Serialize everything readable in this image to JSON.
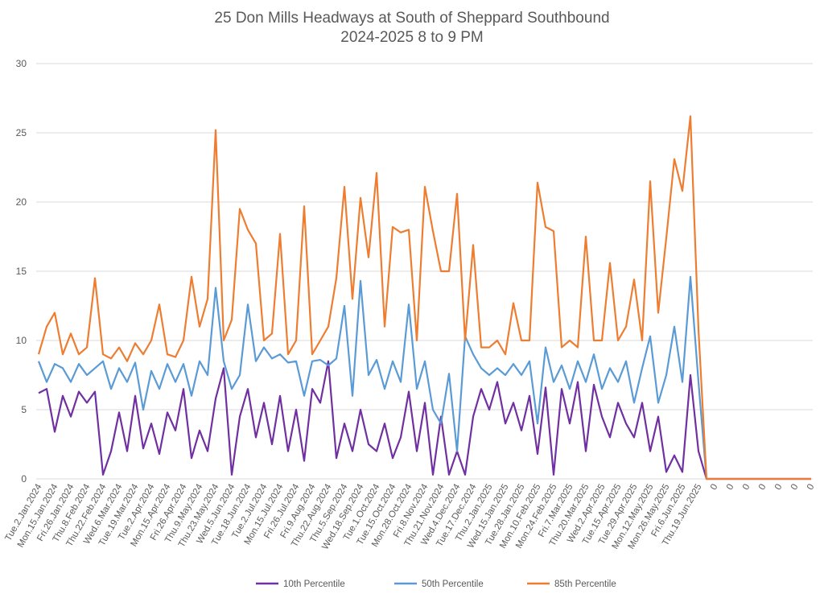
{
  "chart_data": {
    "type": "line",
    "title": "25 Don Mills Headways at South of Sheppard Southbound",
    "subtitle": "2024-2025 8 to 9 PM",
    "xlabel": "",
    "ylabel": "",
    "ylim": [
      0,
      30
    ],
    "yticks": [
      0,
      5,
      10,
      15,
      20,
      25,
      30
    ],
    "grid": true,
    "legend_position": "bottom",
    "x_tick_labels": [
      "Tue.2.Jan.2024",
      "Mon.15.Jan.2024",
      "Fri.26.Jan.2024",
      "Thu.8.Feb.2024",
      "Thu.22.Feb.2024",
      "Wed.6.Mar.2024",
      "Tue.19.Mar.2024",
      "Tue.2.Apr.2024",
      "Mon.15.Apr.2024",
      "Fri.26.Apr.2024",
      "Thu.9.May.2024",
      "Thu.23.May.2024",
      "Wed.5.Jun.2024",
      "Tue.18.Jun.2024",
      "Tue.2.Jul.2024",
      "Mon.15.Jul.2024",
      "Fri.26.Jul.2024",
      "Fri.9.Aug.2024",
      "Thu.22.Aug.2024",
      "Thu.5.Sep.2024",
      "Wed.18.Sep.2024",
      "Tue.1.Oct.2024",
      "Tue.15.Oct.2024",
      "Mon.28.Oct.2024",
      "Fri.8.Nov.2024",
      "Thu.21.Nov.2024",
      "Wed.4.Dec.2024",
      "Tue.17.Dec.2024",
      "Thu.2.Jan.2025",
      "Wed.15.Jan.2025",
      "Tue.28.Jan.2025",
      "Mon.10.Feb.2025",
      "Mon.24.Feb.2025",
      "Fri.7.Mar.2025",
      "Thu.20.Mar.2025",
      "Wed.2.Apr.2025",
      "Tue.15.Apr.2025",
      "Tue.29.Apr.2025",
      "Mon.12.May.2025",
      "Mon.26.May.2025",
      "Fri.6.Jun.2025",
      "Thu.19.Jun.2025",
      "0",
      "0",
      "0",
      "0",
      "0",
      "0",
      "0"
    ],
    "series": [
      {
        "name": "10th Percentile",
        "color": "#7030a0",
        "values": [
          6.2,
          6.5,
          3.4,
          6,
          4.5,
          6.3,
          5.5,
          6.3,
          0.3,
          2,
          4.8,
          2,
          6,
          2.2,
          4,
          1.8,
          4.8,
          3.5,
          6.5,
          1.5,
          3.5,
          2,
          5.8,
          8,
          0.3,
          4.5,
          6.5,
          3,
          5.5,
          2.5,
          6,
          2,
          5,
          1.3,
          6.5,
          5.5,
          8.5,
          1.5,
          4,
          2,
          5,
          2.5,
          2,
          4,
          1.5,
          3,
          6.3,
          2,
          5.5,
          0.3,
          4.5,
          0.3,
          2,
          0.3,
          4.5,
          6.5,
          5,
          7,
          4,
          5.5,
          3.5,
          6,
          1.8,
          6.6,
          0.3,
          6.5,
          4,
          7,
          2,
          6.8,
          4.5,
          3,
          5.5,
          4,
          3,
          5.5,
          2,
          4.5,
          0.5,
          1.7,
          0.5,
          7.5,
          2,
          0,
          0,
          0,
          0,
          0,
          0,
          0,
          0,
          0,
          0,
          0,
          0,
          0,
          0
        ]
      },
      {
        "name": "50th Percentile",
        "color": "#5b9bd5",
        "values": [
          8.5,
          7,
          8.3,
          8,
          7,
          8.3,
          7.5,
          8,
          8.5,
          6.5,
          8,
          7,
          8.4,
          5,
          7.8,
          6.5,
          8.3,
          7,
          8.3,
          6,
          8.5,
          7.5,
          13.8,
          8.5,
          6.5,
          7.5,
          12.6,
          8.5,
          9.5,
          8.7,
          9,
          8.4,
          8.5,
          6,
          8.5,
          8.6,
          8.2,
          8.7,
          12.5,
          6,
          14.3,
          7.5,
          8.6,
          6.5,
          8.5,
          7,
          12.6,
          6.5,
          8.5,
          5,
          4,
          7.6,
          2,
          10.3,
          9,
          8,
          7.5,
          8,
          7.5,
          8.3,
          7.5,
          8.5,
          4,
          9.5,
          7,
          8.2,
          6.5,
          8.5,
          7,
          9,
          6.5,
          8,
          7,
          8.5,
          5.5,
          8,
          10.3,
          5.5,
          7.5,
          11,
          7,
          14.6,
          7,
          0,
          0,
          0,
          0,
          0,
          0,
          0,
          0,
          0,
          0,
          0,
          0,
          0,
          0
        ]
      },
      {
        "name": "85th Percentile",
        "color": "#ed7d31",
        "values": [
          9,
          11,
          12,
          9,
          10.5,
          9,
          9.5,
          14.5,
          9,
          8.7,
          9.5,
          8.5,
          9.8,
          9,
          10,
          12.6,
          9,
          8.8,
          10,
          14.6,
          11,
          13,
          25.2,
          10,
          11.5,
          19.5,
          18,
          17,
          10,
          10.5,
          17.7,
          9,
          10,
          19.7,
          9,
          10,
          11,
          14.5,
          21.1,
          13,
          20.3,
          16,
          22.1,
          11,
          18.2,
          17.8,
          18,
          10,
          21.1,
          17.9,
          15,
          15,
          20.6,
          10,
          16.9,
          9.5,
          9.5,
          10,
          9,
          12.7,
          10,
          10,
          21.4,
          18.2,
          17.9,
          9.5,
          10,
          9.5,
          17.5,
          10,
          10,
          15.6,
          10,
          11,
          14.4,
          10,
          21.5,
          12,
          17.4,
          23.1,
          20.8,
          26.2,
          10.8,
          0,
          0,
          0,
          0,
          0,
          0,
          0,
          0,
          0,
          0,
          0,
          0,
          0,
          0
        ]
      }
    ]
  }
}
